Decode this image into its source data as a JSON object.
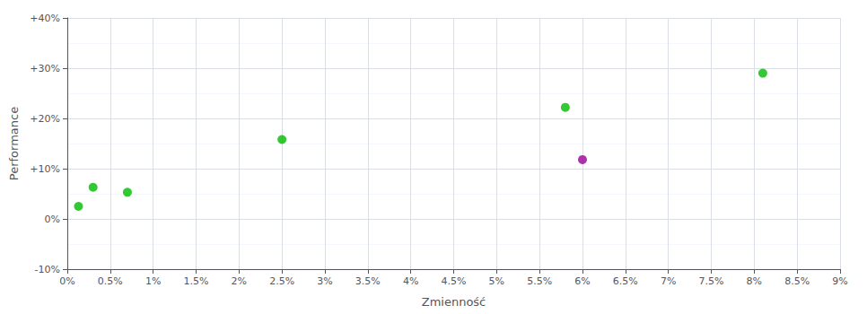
{
  "chart_data": {
    "type": "scatter",
    "xlabel": "Zmienność",
    "ylabel": "Performance",
    "x": [
      0.0013,
      0.003,
      0.007,
      0.025,
      0.058,
      0.06,
      0.081
    ],
    "values": [
      0.025,
      0.063,
      0.053,
      0.158,
      0.222,
      0.118,
      0.29
    ],
    "colors": [
      "#00bb00",
      "#00bb00",
      "#00bb00",
      "#00bb00",
      "#00bb00",
      "#990099",
      "#00bb00"
    ],
    "xlim": [
      0,
      0.09
    ],
    "ylim": [
      -0.1,
      0.4
    ],
    "xticks": [
      {
        "value": 0.0,
        "label": "0%"
      },
      {
        "value": 0.005,
        "label": "0.5%"
      },
      {
        "value": 0.01,
        "label": "1%"
      },
      {
        "value": 0.015,
        "label": "1.5%"
      },
      {
        "value": 0.02,
        "label": "2%"
      },
      {
        "value": 0.025,
        "label": "2.5%"
      },
      {
        "value": 0.03,
        "label": "3%"
      },
      {
        "value": 0.035,
        "label": "3.5%"
      },
      {
        "value": 0.04,
        "label": "4%"
      },
      {
        "value": 0.045,
        "label": "4.5%"
      },
      {
        "value": 0.05,
        "label": "5%"
      },
      {
        "value": 0.055,
        "label": "5.5%"
      },
      {
        "value": 0.06,
        "label": "6%"
      },
      {
        "value": 0.065,
        "label": "6.5%"
      },
      {
        "value": 0.07,
        "label": "7%"
      },
      {
        "value": 0.075,
        "label": "7.5%"
      },
      {
        "value": 0.08,
        "label": "8%"
      },
      {
        "value": 0.085,
        "label": "8.5%"
      },
      {
        "value": 0.09,
        "label": "9%"
      }
    ],
    "yticks": [
      {
        "value": -0.1,
        "label": "-10%"
      },
      {
        "value": 0.0,
        "label": "0%"
      },
      {
        "value": 0.1,
        "label": "+10%"
      },
      {
        "value": 0.2,
        "label": "+20%"
      },
      {
        "value": 0.3,
        "label": "+30%"
      },
      {
        "value": 0.4,
        "label": "+40%"
      }
    ],
    "grid": true
  }
}
